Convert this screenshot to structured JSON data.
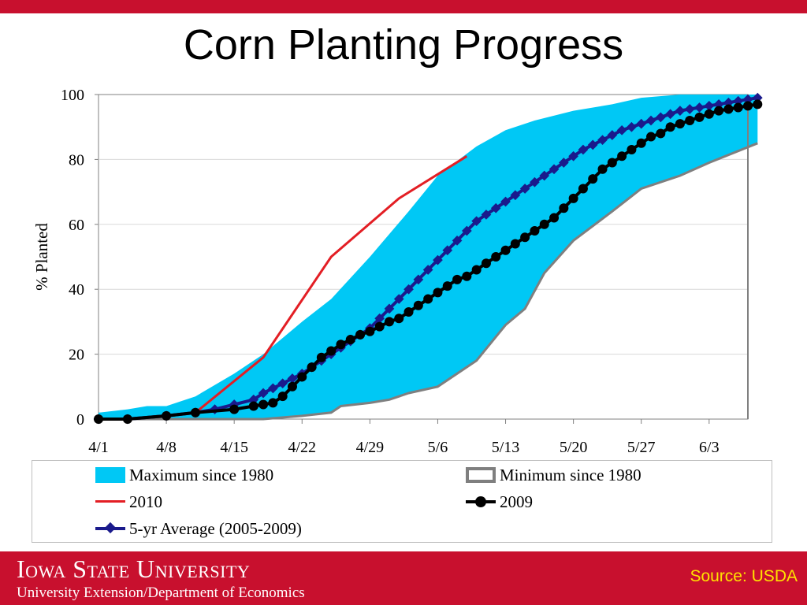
{
  "slide": {
    "title": "Corn Planting Progress",
    "source": "Source: USDA",
    "university": "Iowa State University",
    "department": "University Extension/Department of Economics"
  },
  "colors": {
    "max_fill": "#00c8f5",
    "min_line": "#7f7f7f",
    "y2010": "#e31e24",
    "y2009": "#000000",
    "avg": "#1a1a8c",
    "brand_red": "#c8102e",
    "source_text": "#ffe100"
  },
  "chart_data": {
    "type": "line",
    "title": "Corn Planting Progress",
    "xlabel": "",
    "ylabel": "% Planted",
    "ylim": [
      0,
      100
    ],
    "xlim_days": [
      0,
      67
    ],
    "yticks": [
      "0",
      "20",
      "40",
      "60",
      "80",
      "100"
    ],
    "xticks": [
      "4/1",
      "4/8",
      "4/15",
      "4/22",
      "4/29",
      "5/6",
      "5/13",
      "5/20",
      "5/27",
      "6/3"
    ],
    "legend": [
      {
        "name": "Maximum since 1980",
        "marker": "fill"
      },
      {
        "name": "Minimum since 1980",
        "marker": "outline"
      },
      {
        "name": "2010",
        "marker": "line"
      },
      {
        "name": "2009",
        "marker": "circle"
      },
      {
        "name": "5-yr Average (2005-2009)",
        "marker": "diamond"
      }
    ],
    "series": [
      {
        "name": "Maximum since 1980",
        "x": [
          "4/1",
          "4/4",
          "4/6",
          "4/8",
          "4/11",
          "4/15",
          "4/18",
          "4/22",
          "4/25",
          "4/29",
          "5/3",
          "5/6",
          "5/10",
          "5/13",
          "5/16",
          "5/20",
          "5/24",
          "5/27",
          "5/31",
          "6/3",
          "6/8"
        ],
        "values": [
          2,
          3,
          4,
          4,
          7,
          14,
          20,
          30,
          37,
          50,
          64,
          75,
          84,
          89,
          92,
          95,
          97,
          99,
          100,
          100,
          100
        ]
      },
      {
        "name": "Minimum since 1980",
        "x": [
          "4/1",
          "4/8",
          "4/15",
          "4/18",
          "4/22",
          "4/25",
          "4/26",
          "4/29",
          "5/1",
          "5/3",
          "5/6",
          "5/10",
          "5/13",
          "5/15",
          "5/17",
          "5/20",
          "5/24",
          "5/27",
          "5/31",
          "6/3",
          "6/8"
        ],
        "values": [
          0,
          0,
          0,
          0,
          1,
          2,
          4,
          5,
          6,
          8,
          10,
          18,
          29,
          34,
          45,
          55,
          64,
          71,
          75,
          79,
          85
        ]
      },
      {
        "name": "2010",
        "x": [
          "4/1",
          "4/4",
          "4/11",
          "4/18",
          "4/25",
          "5/2",
          "5/9"
        ],
        "values": [
          0,
          0,
          2,
          19,
          50,
          68,
          81
        ]
      },
      {
        "name": "2009",
        "x": [
          "4/1",
          "4/4",
          "4/8",
          "4/11",
          "4/15",
          "4/17",
          "4/18",
          "4/19",
          "4/20",
          "4/21",
          "4/22",
          "4/23",
          "4/24",
          "4/25",
          "4/26",
          "4/27",
          "4/28",
          "4/29",
          "4/30",
          "5/1",
          "5/2",
          "5/3",
          "5/4",
          "5/5",
          "5/6",
          "5/7",
          "5/8",
          "5/9",
          "5/10",
          "5/11",
          "5/12",
          "5/13",
          "5/14",
          "5/15",
          "5/16",
          "5/17",
          "5/18",
          "5/19",
          "5/20",
          "5/21",
          "5/22",
          "5/23",
          "5/24",
          "5/25",
          "5/26",
          "5/27",
          "5/28",
          "5/29",
          "5/30",
          "5/31",
          "6/1",
          "6/2",
          "6/3",
          "6/4",
          "6/5",
          "6/6",
          "6/7",
          "6/8"
        ],
        "values": [
          0,
          0,
          1,
          2,
          3,
          4,
          4.5,
          5,
          7,
          10,
          13,
          16,
          19,
          21,
          23,
          24.5,
          26,
          27,
          28.5,
          30,
          31,
          33,
          35,
          37,
          39,
          41,
          43,
          44,
          46,
          48,
          50,
          52,
          54,
          56,
          58,
          60,
          62,
          65,
          68,
          71,
          74,
          77,
          79,
          81,
          83,
          85,
          87,
          88,
          90,
          91,
          92,
          93,
          94,
          95,
          95.5,
          96,
          96.5,
          97
        ]
      },
      {
        "name": "5-yr Average (2005-2009)",
        "x": [
          "4/1",
          "4/4",
          "4/8",
          "4/11",
          "4/13",
          "4/15",
          "4/17",
          "4/18",
          "4/19",
          "4/20",
          "4/21",
          "4/22",
          "4/23",
          "4/24",
          "4/25",
          "4/26",
          "4/27",
          "4/28",
          "4/29",
          "4/30",
          "5/1",
          "5/2",
          "5/3",
          "5/4",
          "5/5",
          "5/6",
          "5/7",
          "5/8",
          "5/9",
          "5/10",
          "5/11",
          "5/12",
          "5/13",
          "5/14",
          "5/15",
          "5/16",
          "5/17",
          "5/18",
          "5/19",
          "5/20",
          "5/21",
          "5/22",
          "5/23",
          "5/24",
          "5/25",
          "5/26",
          "5/27",
          "5/28",
          "5/29",
          "5/30",
          "5/31",
          "6/1",
          "6/2",
          "6/3",
          "6/4",
          "6/5",
          "6/6",
          "6/7",
          "6/8"
        ],
        "values": [
          0,
          0,
          1,
          2,
          3,
          4.5,
          6,
          8,
          9.5,
          11,
          12.5,
          14,
          16,
          18,
          20,
          22,
          24,
          26,
          28,
          31,
          34,
          37,
          40,
          43,
          46,
          49,
          52,
          55,
          58,
          61,
          63,
          65,
          67,
          69,
          71,
          73,
          75,
          77,
          79,
          81,
          83,
          84.5,
          86,
          87.5,
          89,
          90,
          91,
          92,
          93,
          94,
          95,
          95.5,
          96,
          96.5,
          97,
          97.5,
          98,
          98.5,
          99
        ]
      }
    ]
  }
}
